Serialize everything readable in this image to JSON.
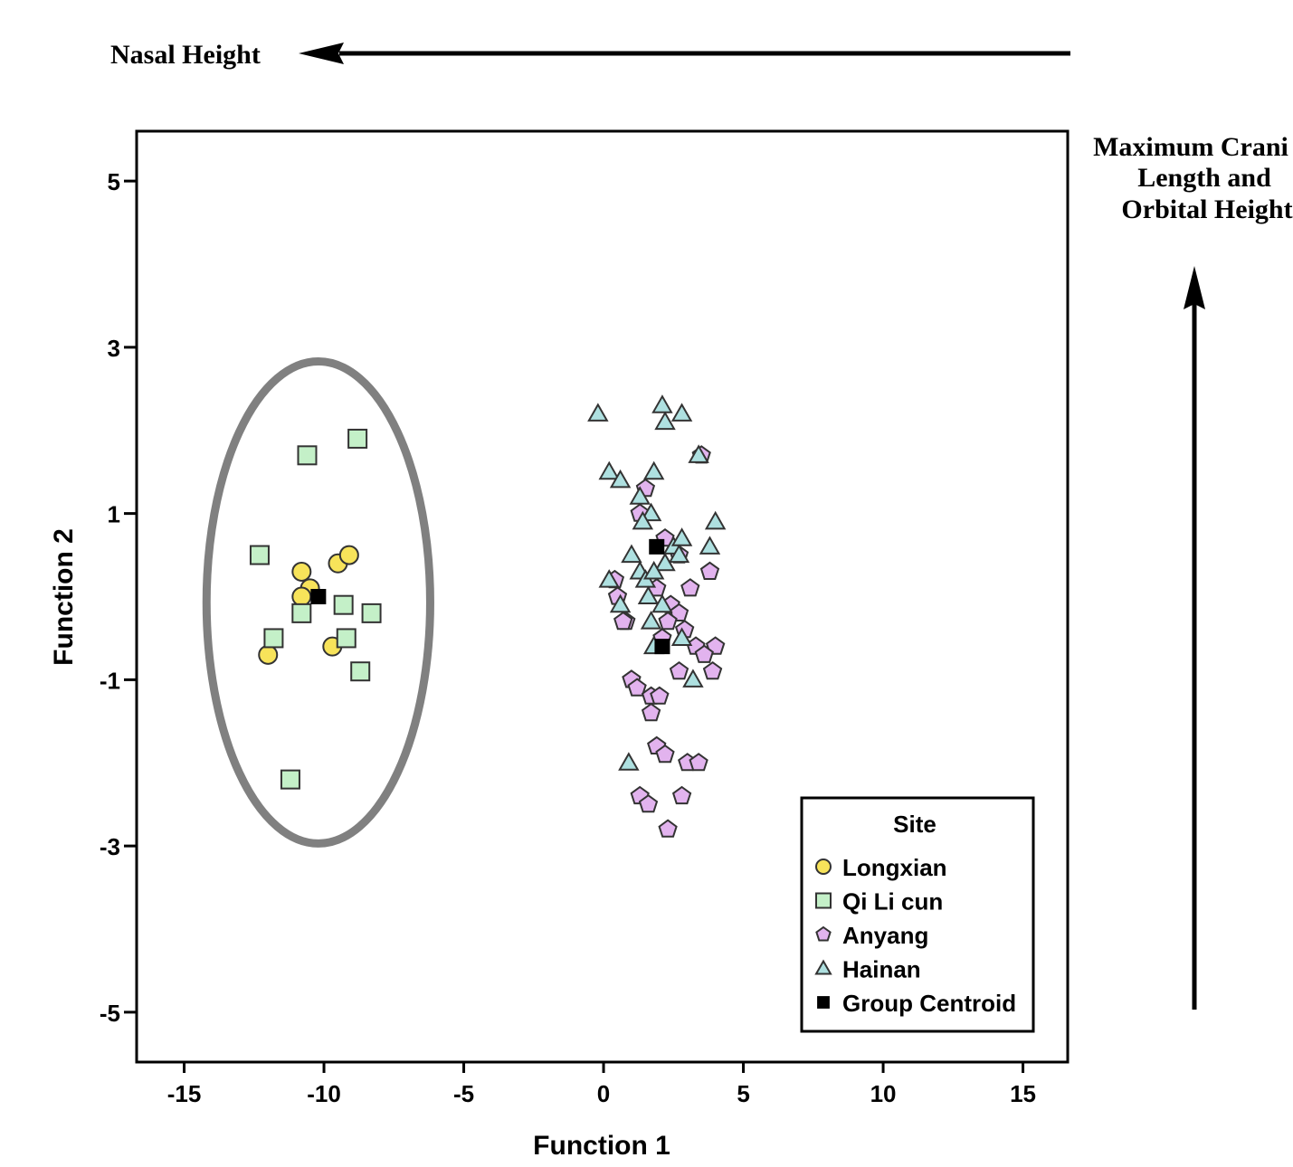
{
  "annotations": {
    "top_arrow_label": "Nasal Height",
    "right_arrow_label_lines": [
      "Maximum Crani",
      "Length and",
      "Orbital Height"
    ]
  },
  "chart_data": {
    "type": "scatter",
    "title": "",
    "xlabel": "Function 1",
    "ylabel": "Function 2",
    "xlim": [
      -16.7,
      16.6
    ],
    "ylim": [
      -5.6,
      5.6
    ],
    "xticks": [
      -15,
      -10,
      -5,
      0,
      5,
      10,
      15
    ],
    "xtick_labels": [
      "-15",
      "-10",
      "-5",
      "0",
      "5",
      "10",
      "15"
    ],
    "yticks": [
      5,
      3,
      1,
      -1,
      -3,
      -5
    ],
    "ytick_labels": [
      "5",
      "3",
      "1",
      "-1",
      "-3",
      "-5"
    ],
    "grid": false,
    "legend": {
      "title": "Site",
      "placement": "bottom-right"
    },
    "ellipse": {
      "cx": -10.2,
      "cy": -0.07,
      "rx": 4.0,
      "ry": 2.9,
      "color": "#808080"
    },
    "series": [
      {
        "name": "Longxian",
        "marker": "circle",
        "fill": "#f7e35a",
        "points": [
          [
            -10.8,
            0.3
          ],
          [
            -10.5,
            0.1
          ],
          [
            -10.8,
            0.0
          ],
          [
            -9.5,
            0.4
          ],
          [
            -9.1,
            0.5
          ],
          [
            -9.7,
            -0.6
          ],
          [
            -12.0,
            -0.7
          ]
        ]
      },
      {
        "name": "Qi Li cun",
        "marker": "square",
        "fill": "#c4f0c8",
        "points": [
          [
            -10.6,
            1.7
          ],
          [
            -8.8,
            1.9
          ],
          [
            -12.3,
            0.5
          ],
          [
            -9.3,
            -0.1
          ],
          [
            -10.8,
            -0.2
          ],
          [
            -8.3,
            -0.2
          ],
          [
            -11.8,
            -0.5
          ],
          [
            -9.2,
            -0.5
          ],
          [
            -8.7,
            -0.9
          ],
          [
            -11.2,
            -2.2
          ]
        ]
      },
      {
        "name": "Anyang",
        "marker": "pentagon",
        "fill": "#e2b3ee",
        "points": [
          [
            1.5,
            1.3
          ],
          [
            1.3,
            1.0
          ],
          [
            2.2,
            0.7
          ],
          [
            2.7,
            0.5
          ],
          [
            3.8,
            0.3
          ],
          [
            0.4,
            0.2
          ],
          [
            0.5,
            0.0
          ],
          [
            1.9,
            0.1
          ],
          [
            3.1,
            0.1
          ],
          [
            2.4,
            -0.1
          ],
          [
            2.7,
            -0.2
          ],
          [
            0.8,
            -0.3
          ],
          [
            2.3,
            -0.3
          ],
          [
            0.7,
            -0.3
          ],
          [
            2.9,
            -0.4
          ],
          [
            2.1,
            -0.5
          ],
          [
            3.3,
            -0.6
          ],
          [
            4.0,
            -0.6
          ],
          [
            3.6,
            -0.7
          ],
          [
            2.7,
            -0.9
          ],
          [
            3.9,
            -0.9
          ],
          [
            1.0,
            -1.0
          ],
          [
            1.2,
            -1.1
          ],
          [
            1.7,
            -1.2
          ],
          [
            2.0,
            -1.2
          ],
          [
            1.7,
            -1.4
          ],
          [
            1.9,
            -1.8
          ],
          [
            2.2,
            -1.9
          ],
          [
            3.0,
            -2.0
          ],
          [
            3.4,
            -2.0
          ],
          [
            1.3,
            -2.4
          ],
          [
            1.6,
            -2.5
          ],
          [
            2.8,
            -2.4
          ],
          [
            2.3,
            -2.8
          ],
          [
            3.5,
            1.7
          ]
        ]
      },
      {
        "name": "Hainan",
        "marker": "triangle",
        "fill": "#aee0e0",
        "points": [
          [
            -0.2,
            2.2
          ],
          [
            2.1,
            2.3
          ],
          [
            2.2,
            2.1
          ],
          [
            2.8,
            2.2
          ],
          [
            3.4,
            1.7
          ],
          [
            0.2,
            1.5
          ],
          [
            0.6,
            1.4
          ],
          [
            1.8,
            1.5
          ],
          [
            1.3,
            1.2
          ],
          [
            1.7,
            1.0
          ],
          [
            1.4,
            0.9
          ],
          [
            2.5,
            0.6
          ],
          [
            2.8,
            0.7
          ],
          [
            4.0,
            0.9
          ],
          [
            3.8,
            0.6
          ],
          [
            1.0,
            0.5
          ],
          [
            1.3,
            0.3
          ],
          [
            2.2,
            0.4
          ],
          [
            2.7,
            0.5
          ],
          [
            0.2,
            0.2
          ],
          [
            1.5,
            0.2
          ],
          [
            1.8,
            0.3
          ],
          [
            1.6,
            0.0
          ],
          [
            0.6,
            -0.1
          ],
          [
            2.1,
            -0.1
          ],
          [
            1.7,
            -0.3
          ],
          [
            1.8,
            -0.6
          ],
          [
            2.8,
            -0.5
          ],
          [
            3.2,
            -1.0
          ],
          [
            0.9,
            -2.0
          ]
        ]
      },
      {
        "name": "Group Centroid",
        "marker": "filled-square",
        "fill": "#000000",
        "points": [
          [
            -10.2,
            0.0
          ],
          [
            1.9,
            0.6
          ],
          [
            2.1,
            -0.6
          ]
        ]
      }
    ]
  }
}
